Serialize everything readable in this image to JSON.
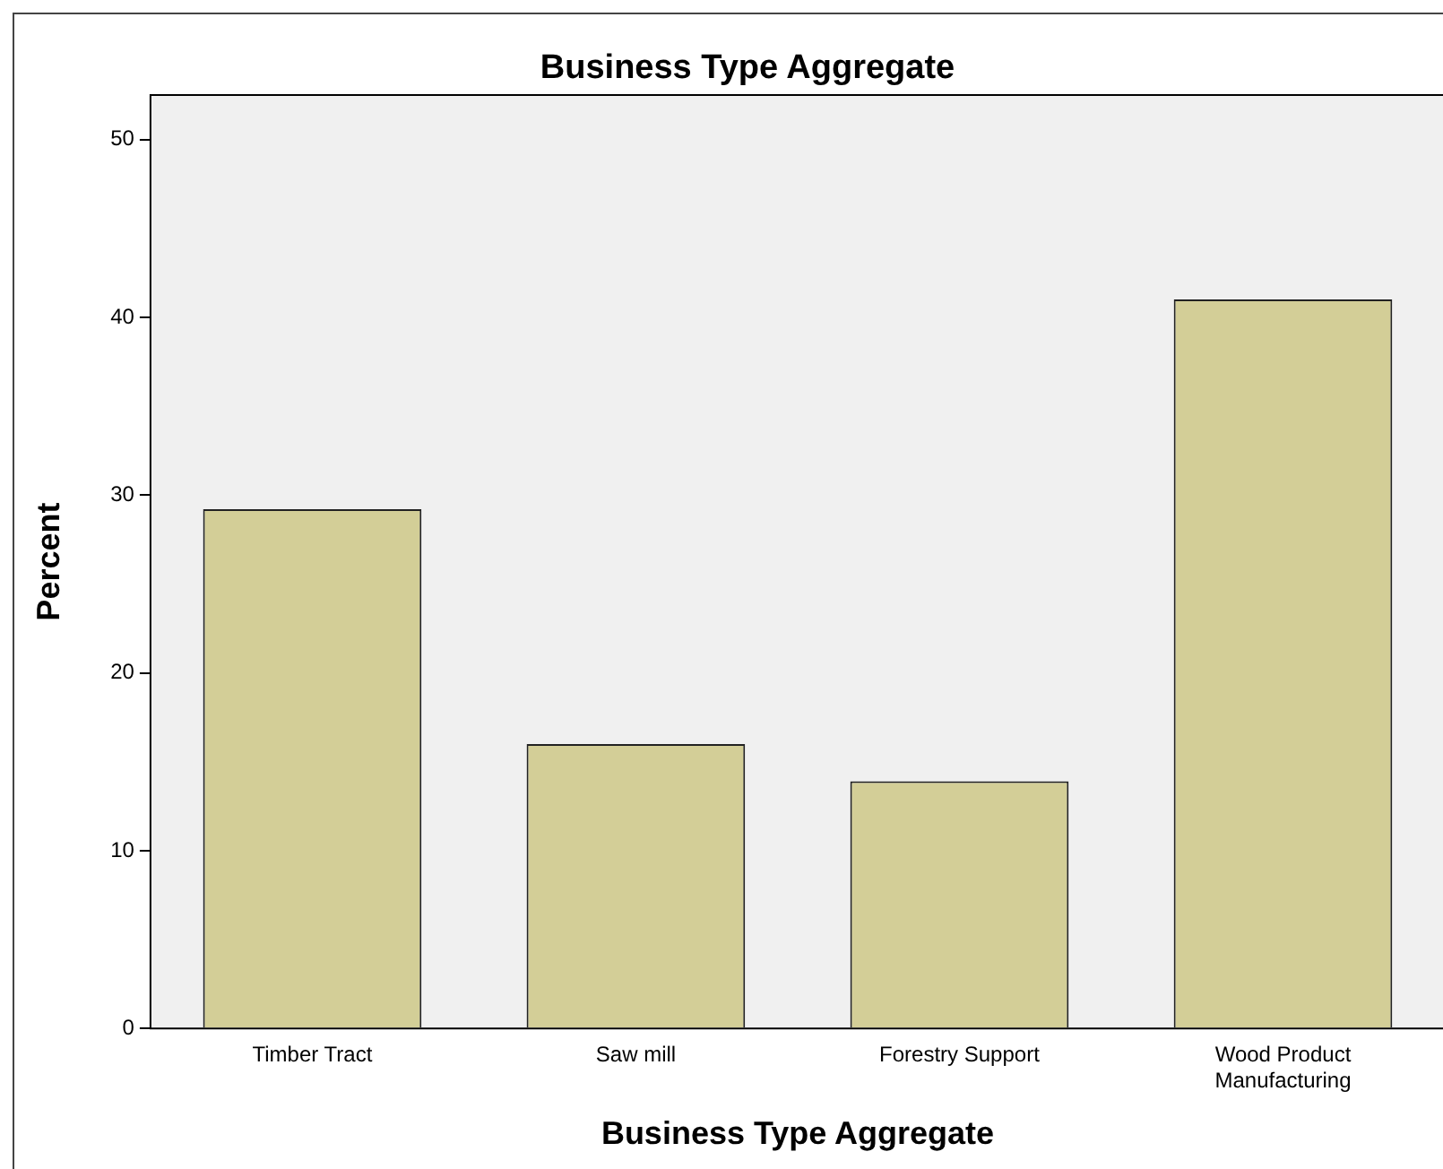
{
  "chart_data": {
    "type": "bar",
    "title": "Business Type Aggregate",
    "xlabel": "Business Type Aggregate",
    "ylabel": "Percent",
    "categories": [
      "Timber Tract",
      "Saw mill",
      "Forestry Support",
      "Wood Product Manufacturing"
    ],
    "values": [
      29.2,
      16.0,
      13.9,
      41.0
    ],
    "color": "#d3ce97",
    "ylim": [
      0,
      52.5
    ],
    "yticks": [
      0,
      10,
      20,
      30,
      40,
      50
    ],
    "grid": false,
    "legend": false
  }
}
